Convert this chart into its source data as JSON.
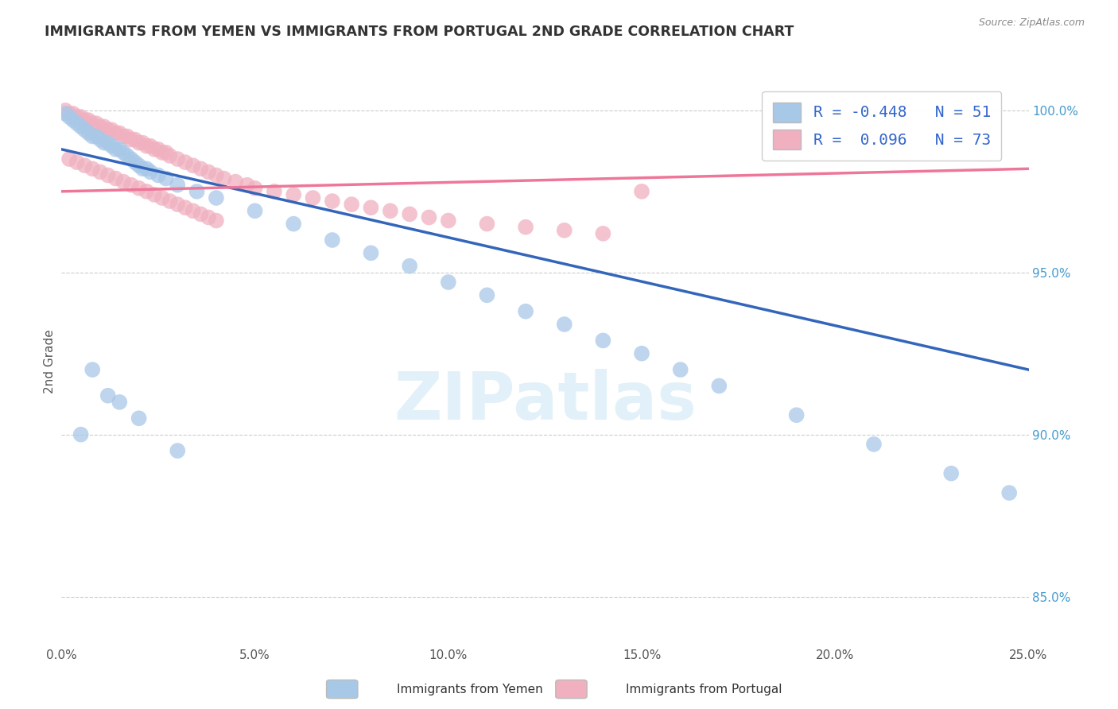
{
  "title": "IMMIGRANTS FROM YEMEN VS IMMIGRANTS FROM PORTUGAL 2ND GRADE CORRELATION CHART",
  "source": "Source: ZipAtlas.com",
  "ylabel": "2nd Grade",
  "xmin": 0.0,
  "xmax": 0.25,
  "ymin": 0.835,
  "ymax": 1.01,
  "yticks": [
    0.85,
    0.9,
    0.95,
    1.0
  ],
  "ytick_labels": [
    "85.0%",
    "90.0%",
    "95.0%",
    "100.0%"
  ],
  "xticks": [
    0.0,
    0.05,
    0.1,
    0.15,
    0.2,
    0.25
  ],
  "xtick_labels": [
    "0.0%",
    "5.0%",
    "10.0%",
    "15.0%",
    "20.0%",
    "25.0%"
  ],
  "legend_bottom_labels": [
    "Immigrants from Yemen",
    "Immigrants from Portugal"
  ],
  "yemen_color": "#a8c8e8",
  "portugal_color": "#f0b0c0",
  "yemen_line_color": "#3366bb",
  "portugal_line_color": "#ee7799",
  "watermark": "ZIPatlas",
  "background_color": "#ffffff",
  "grid_color": "#cccccc",
  "title_color": "#333333",
  "right_axis_color": "#4499cc",
  "legend_R1": "R = -0.448",
  "legend_N1": "N = 51",
  "legend_R2": "R =  0.096",
  "legend_N2": "N = 73",
  "yemen_line_x0": 0.0,
  "yemen_line_x1": 0.25,
  "yemen_line_y0": 0.988,
  "yemen_line_y1": 0.92,
  "portugal_line_x0": 0.0,
  "portugal_line_x1": 0.25,
  "portugal_line_y0": 0.975,
  "portugal_line_y1": 0.982,
  "yemen_scatter_x": [
    0.001,
    0.002,
    0.003,
    0.004,
    0.005,
    0.006,
    0.007,
    0.008,
    0.009,
    0.01,
    0.011,
    0.012,
    0.013,
    0.014,
    0.015,
    0.016,
    0.017,
    0.018,
    0.019,
    0.02,
    0.021,
    0.022,
    0.023,
    0.025,
    0.027,
    0.03,
    0.035,
    0.04,
    0.05,
    0.06,
    0.07,
    0.08,
    0.09,
    0.1,
    0.11,
    0.12,
    0.13,
    0.14,
    0.15,
    0.16,
    0.17,
    0.19,
    0.21,
    0.23,
    0.245,
    0.015,
    0.02,
    0.005,
    0.03,
    0.008,
    0.012
  ],
  "yemen_scatter_y": [
    0.999,
    0.998,
    0.997,
    0.996,
    0.995,
    0.994,
    0.993,
    0.992,
    0.992,
    0.991,
    0.99,
    0.99,
    0.989,
    0.988,
    0.988,
    0.987,
    0.986,
    0.985,
    0.984,
    0.983,
    0.982,
    0.982,
    0.981,
    0.98,
    0.979,
    0.977,
    0.975,
    0.973,
    0.969,
    0.965,
    0.96,
    0.956,
    0.952,
    0.947,
    0.943,
    0.938,
    0.934,
    0.929,
    0.925,
    0.92,
    0.915,
    0.906,
    0.897,
    0.888,
    0.882,
    0.91,
    0.905,
    0.9,
    0.895,
    0.92,
    0.912
  ],
  "portugal_scatter_x": [
    0.001,
    0.002,
    0.003,
    0.004,
    0.005,
    0.006,
    0.007,
    0.008,
    0.009,
    0.01,
    0.011,
    0.012,
    0.013,
    0.014,
    0.015,
    0.016,
    0.017,
    0.018,
    0.019,
    0.02,
    0.021,
    0.022,
    0.023,
    0.024,
    0.025,
    0.026,
    0.027,
    0.028,
    0.03,
    0.032,
    0.034,
    0.036,
    0.038,
    0.04,
    0.042,
    0.045,
    0.048,
    0.05,
    0.055,
    0.06,
    0.065,
    0.07,
    0.075,
    0.08,
    0.085,
    0.09,
    0.095,
    0.1,
    0.11,
    0.12,
    0.13,
    0.14,
    0.002,
    0.004,
    0.006,
    0.008,
    0.01,
    0.012,
    0.014,
    0.016,
    0.018,
    0.02,
    0.022,
    0.024,
    0.026,
    0.028,
    0.03,
    0.032,
    0.034,
    0.036,
    0.038,
    0.04,
    0.15
  ],
  "portugal_scatter_y": [
    1.0,
    0.999,
    0.999,
    0.998,
    0.998,
    0.997,
    0.997,
    0.996,
    0.996,
    0.995,
    0.995,
    0.994,
    0.994,
    0.993,
    0.993,
    0.992,
    0.992,
    0.991,
    0.991,
    0.99,
    0.99,
    0.989,
    0.989,
    0.988,
    0.988,
    0.987,
    0.987,
    0.986,
    0.985,
    0.984,
    0.983,
    0.982,
    0.981,
    0.98,
    0.979,
    0.978,
    0.977,
    0.976,
    0.975,
    0.974,
    0.973,
    0.972,
    0.971,
    0.97,
    0.969,
    0.968,
    0.967,
    0.966,
    0.965,
    0.964,
    0.963,
    0.962,
    0.985,
    0.984,
    0.983,
    0.982,
    0.981,
    0.98,
    0.979,
    0.978,
    0.977,
    0.976,
    0.975,
    0.974,
    0.973,
    0.972,
    0.971,
    0.97,
    0.969,
    0.968,
    0.967,
    0.966,
    0.975
  ]
}
